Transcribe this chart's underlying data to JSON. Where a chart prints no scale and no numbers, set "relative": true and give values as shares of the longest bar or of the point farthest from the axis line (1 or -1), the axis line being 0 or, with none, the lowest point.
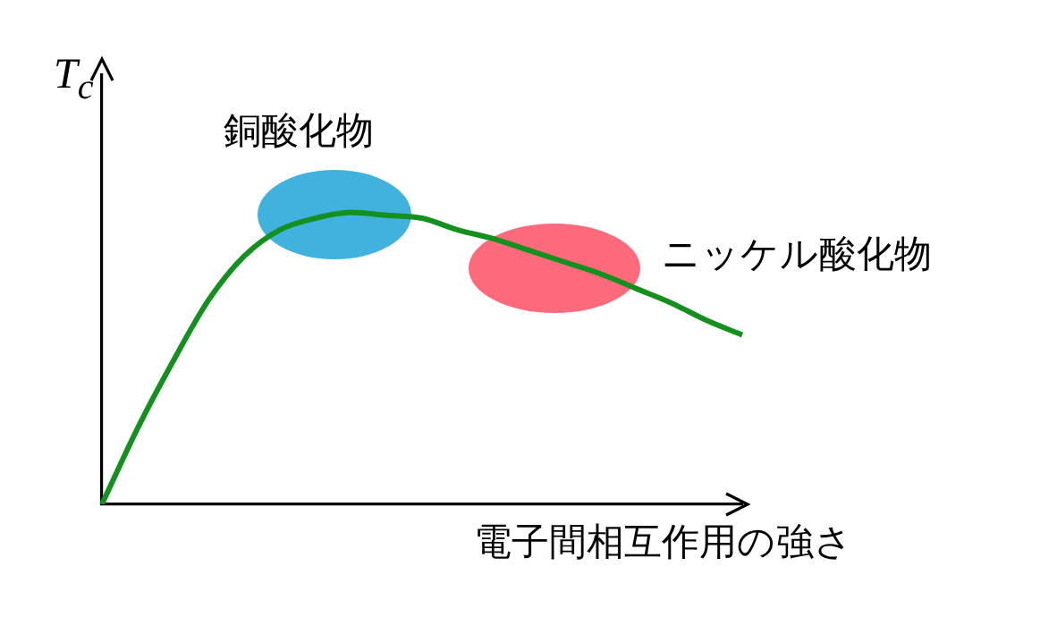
{
  "chart_data": {
    "type": "line",
    "relative": true,
    "xlabel": "電子間相互作用の強さ",
    "ylabel": "T$_{c}$",
    "annotations": [
      "銅酸化物",
      "ニッケル酸化物"
    ],
    "categories": [
      null,
      null,
      null,
      null,
      null,
      null,
      null,
      null,
      null,
      null,
      null,
      null,
      null,
      null,
      null,
      null,
      null,
      null,
      null
    ],
    "series": [
      {
        "color": "#14901e",
        "values": [
          0,
          0.26,
          0.49,
          0.7,
          0.85,
          0.94,
          0.98,
          1,
          0.99,
          0.98,
          0.94,
          0.91,
          0.87,
          0.83,
          0.79,
          0.74,
          0.69,
          0.63,
          0.58
        ]
      }
    ],
    "marker": "none",
    "grid": false,
    "legend": false
  }
}
